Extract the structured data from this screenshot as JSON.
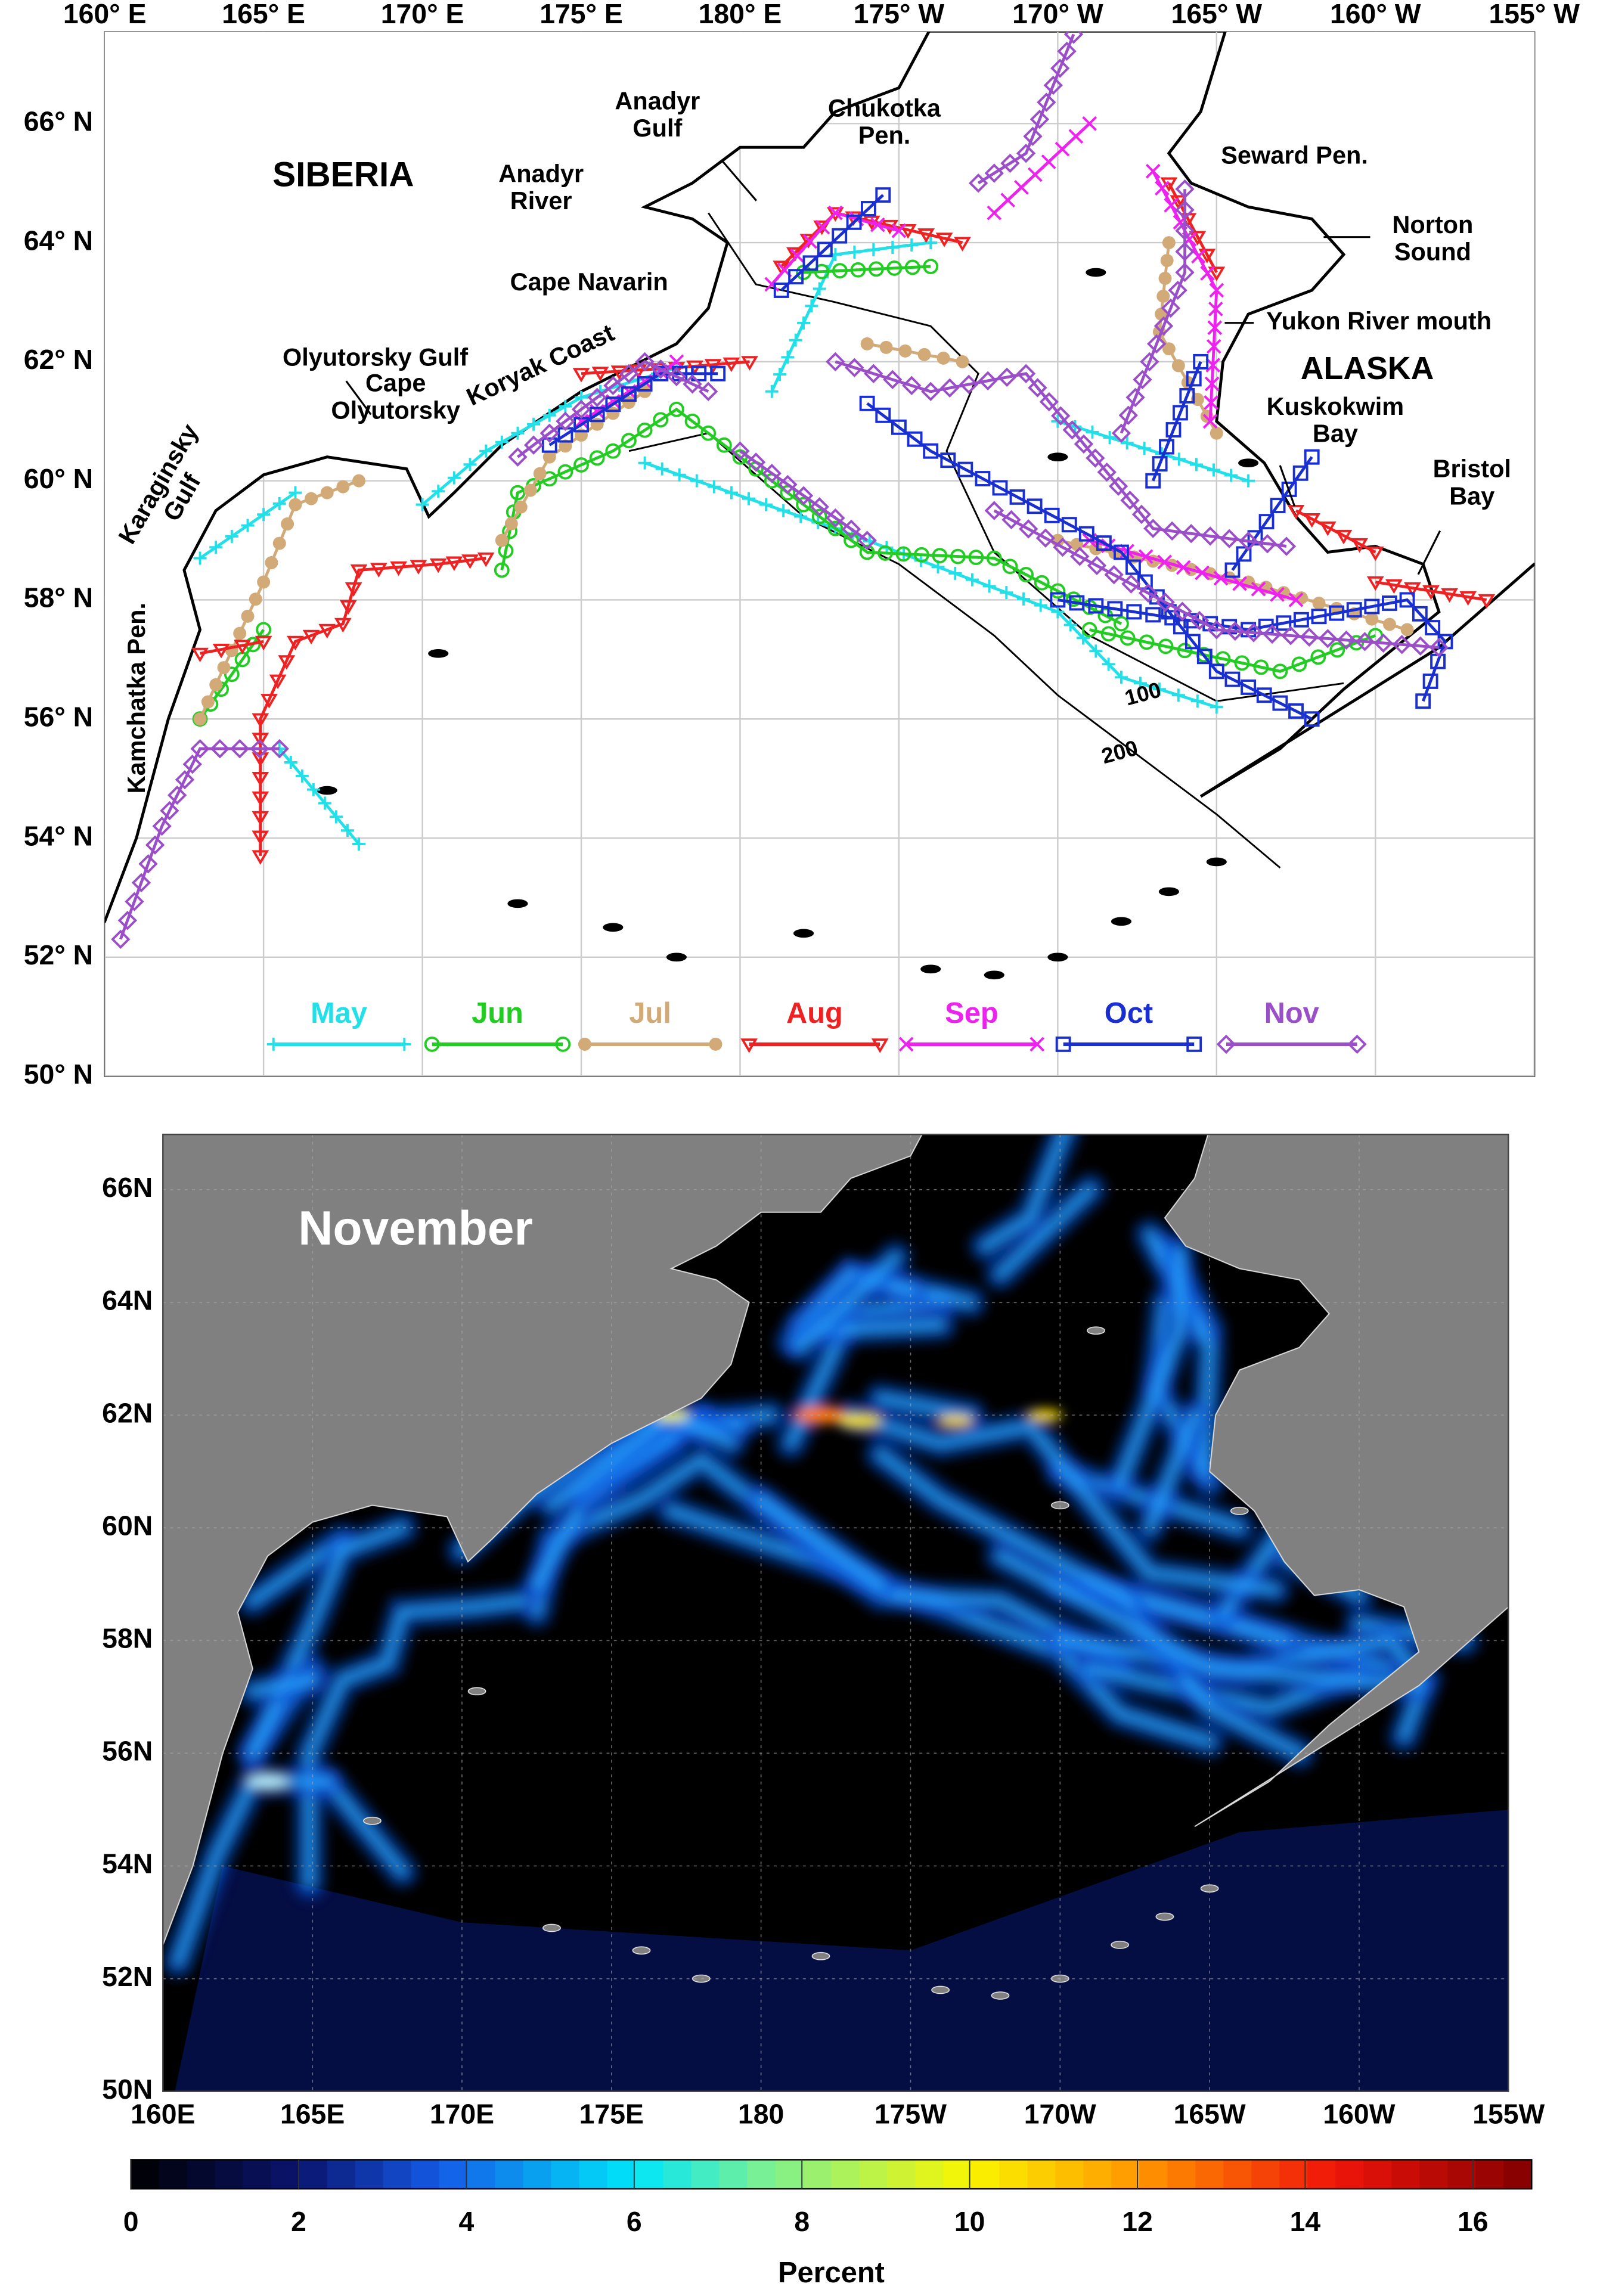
{
  "top_map": {
    "lon_labels": [
      "160° E",
      "165° E",
      "170° E",
      "175° E",
      "180° E",
      "175° W",
      "170° W",
      "165° W",
      "160° W",
      "155° W"
    ],
    "lat_labels": [
      "50° N",
      "52° N",
      "54° N",
      "56° N",
      "58° N",
      "60° N",
      "62° N",
      "64° N",
      "66° N"
    ],
    "places": [
      [
        "SIBERIA"
      ],
      [
        "Anadyr",
        "Gulf"
      ],
      [
        "Anadyr",
        "River"
      ],
      [
        "Chukotka",
        "Pen."
      ],
      [
        "Seward Pen."
      ],
      [
        "Norton",
        "Sound"
      ],
      [
        "Yukon River mouth"
      ],
      [
        "Cape Navarin"
      ],
      [
        "ALASKA"
      ],
      [
        "Olyutorsky Gulf"
      ],
      [
        "Cape",
        "Olyutorsky"
      ],
      [
        "Koryak Coast"
      ],
      [
        "Kuskokwim",
        "Bay"
      ],
      [
        "Bristol",
        "Bay"
      ],
      [
        "Karaginsky",
        "Gulf"
      ],
      [
        "Kamchatka Pen."
      ],
      [
        "100"
      ],
      [
        "200"
      ]
    ],
    "legend": [
      {
        "name": "May",
        "color": "#22e0e8"
      },
      {
        "name": "Jun",
        "color": "#22cc22"
      },
      {
        "name": "Jul",
        "color": "#d2aa78"
      },
      {
        "name": "Aug",
        "color": "#ee2222"
      },
      {
        "name": "Sep",
        "color": "#ee22ee"
      },
      {
        "name": "Oct",
        "color": "#1a2fd0"
      },
      {
        "name": "Nov",
        "color": "#9a4fc8"
      }
    ]
  },
  "bottom_map": {
    "title": "November",
    "lat_labels": [
      "50N",
      "52N",
      "54N",
      "56N",
      "58N",
      "60N",
      "62N",
      "64N",
      "66N"
    ],
    "lon_labels": [
      "160E",
      "165E",
      "170E",
      "175E",
      "180",
      "175W",
      "170W",
      "165W",
      "160W",
      "155W"
    ]
  },
  "colorbar": {
    "range": [
      0,
      16.7
    ],
    "ticks": [
      0,
      2,
      4,
      6,
      8,
      10,
      12,
      14,
      16
    ],
    "label": "Percent"
  }
}
